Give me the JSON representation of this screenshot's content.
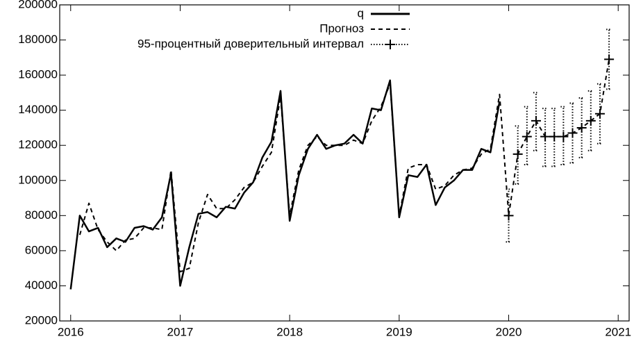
{
  "chart_data": {
    "type": "line",
    "x": [
      2016,
      2016.0833,
      2016.1667,
      2016.25,
      2016.3333,
      2016.4167,
      2016.5,
      2016.5833,
      2016.6667,
      2016.75,
      2016.8333,
      2016.9167,
      2017,
      2017.0833,
      2017.1667,
      2017.25,
      2017.3333,
      2017.4167,
      2017.5,
      2017.5833,
      2017.6667,
      2017.75,
      2017.8333,
      2017.9167,
      2018,
      2018.0833,
      2018.1667,
      2018.25,
      2018.3333,
      2018.4167,
      2018.5,
      2018.5833,
      2018.6667,
      2018.75,
      2018.8333,
      2018.9167,
      2019,
      2019.0833,
      2019.1667,
      2019.25,
      2019.3333,
      2019.4167,
      2019.5,
      2019.5833,
      2019.6667,
      2019.75,
      2019.8333,
      2019.9167,
      2020,
      2020.0833,
      2020.1667,
      2020.25,
      2020.3333,
      2020.4167,
      2020.5,
      2020.5833,
      2020.6667,
      2020.75,
      2020.8333,
      2020.9167
    ],
    "series": [
      {
        "name": "q",
        "color": "#000000",
        "style": "solid",
        "values": [
          38000,
          80000,
          71000,
          73000,
          62000,
          67000,
          65000,
          73000,
          74000,
          72000,
          79000,
          104000,
          40000,
          62000,
          81000,
          82000,
          79000,
          85000,
          84000,
          93000,
          99000,
          113000,
          122000,
          151000,
          77000,
          103000,
          118000,
          126000,
          118000,
          120000,
          121000,
          126000,
          121000,
          141000,
          140000,
          157000,
          79000,
          103000,
          102000,
          109000,
          86000,
          96000,
          100000,
          106000,
          106000,
          118000,
          116000,
          145000,
          null,
          null,
          null,
          null,
          null,
          null,
          null,
          null,
          null,
          null,
          null,
          null
        ]
      },
      {
        "name": "Прогноз",
        "color": "#000000",
        "style": "dashed",
        "values": [
          null,
          69000,
          87000,
          72000,
          65000,
          60000,
          66000,
          67000,
          73000,
          73000,
          72000,
          106000,
          48000,
          50000,
          76000,
          92000,
          84000,
          84000,
          89000,
          96000,
          99000,
          108000,
          116000,
          148000,
          80000,
          106000,
          120000,
          125000,
          120000,
          120000,
          120000,
          123000,
          121000,
          134000,
          142000,
          155000,
          80000,
          107000,
          109000,
          109000,
          95000,
          97000,
          103000,
          106000,
          107000,
          115000,
          118000,
          149000,
          80000,
          115000,
          125000,
          134000,
          125000,
          125000,
          125000,
          127000,
          130000,
          134000,
          138000,
          169000
        ]
      },
      {
        "name": "95-процентный доверительный интервал",
        "color": "#000000",
        "style": "errorbars",
        "values": [
          null,
          null,
          null,
          null,
          null,
          null,
          null,
          null,
          null,
          null,
          null,
          null,
          null,
          null,
          null,
          null,
          null,
          null,
          null,
          null,
          null,
          null,
          null,
          null,
          null,
          null,
          null,
          null,
          null,
          null,
          null,
          null,
          null,
          null,
          null,
          null,
          null,
          null,
          null,
          null,
          null,
          null,
          null,
          null,
          null,
          null,
          null,
          null,
          80000,
          115000,
          125000,
          134000,
          125000,
          125000,
          125000,
          127000,
          130000,
          134000,
          138000,
          169000
        ],
        "low": [
          null,
          null,
          null,
          null,
          null,
          null,
          null,
          null,
          null,
          null,
          null,
          null,
          null,
          null,
          null,
          null,
          null,
          null,
          null,
          null,
          null,
          null,
          null,
          null,
          null,
          null,
          null,
          null,
          null,
          null,
          null,
          null,
          null,
          null,
          null,
          null,
          null,
          null,
          null,
          null,
          null,
          null,
          null,
          null,
          null,
          null,
          null,
          null,
          65000,
          98000,
          109000,
          117000,
          108000,
          108000,
          109000,
          110000,
          113000,
          117000,
          121000,
          152000
        ],
        "high": [
          null,
          null,
          null,
          null,
          null,
          null,
          null,
          null,
          null,
          null,
          null,
          null,
          null,
          null,
          null,
          null,
          null,
          null,
          null,
          null,
          null,
          null,
          null,
          null,
          null,
          null,
          null,
          null,
          null,
          null,
          null,
          null,
          null,
          null,
          null,
          null,
          null,
          null,
          null,
          null,
          null,
          null,
          null,
          null,
          null,
          null,
          null,
          null,
          95000,
          131000,
          142000,
          150000,
          141000,
          141000,
          142000,
          144000,
          147000,
          151000,
          155000,
          186000
        ]
      }
    ],
    "xlim": [
      2015.9,
      2021.1
    ],
    "xticks": [
      2016,
      2017,
      2018,
      2019,
      2020,
      2021
    ],
    "ylim": [
      20000,
      200000
    ],
    "yticks": [
      20000,
      40000,
      60000,
      80000,
      100000,
      120000,
      140000,
      160000,
      180000,
      200000
    ],
    "legend": "top-right"
  }
}
